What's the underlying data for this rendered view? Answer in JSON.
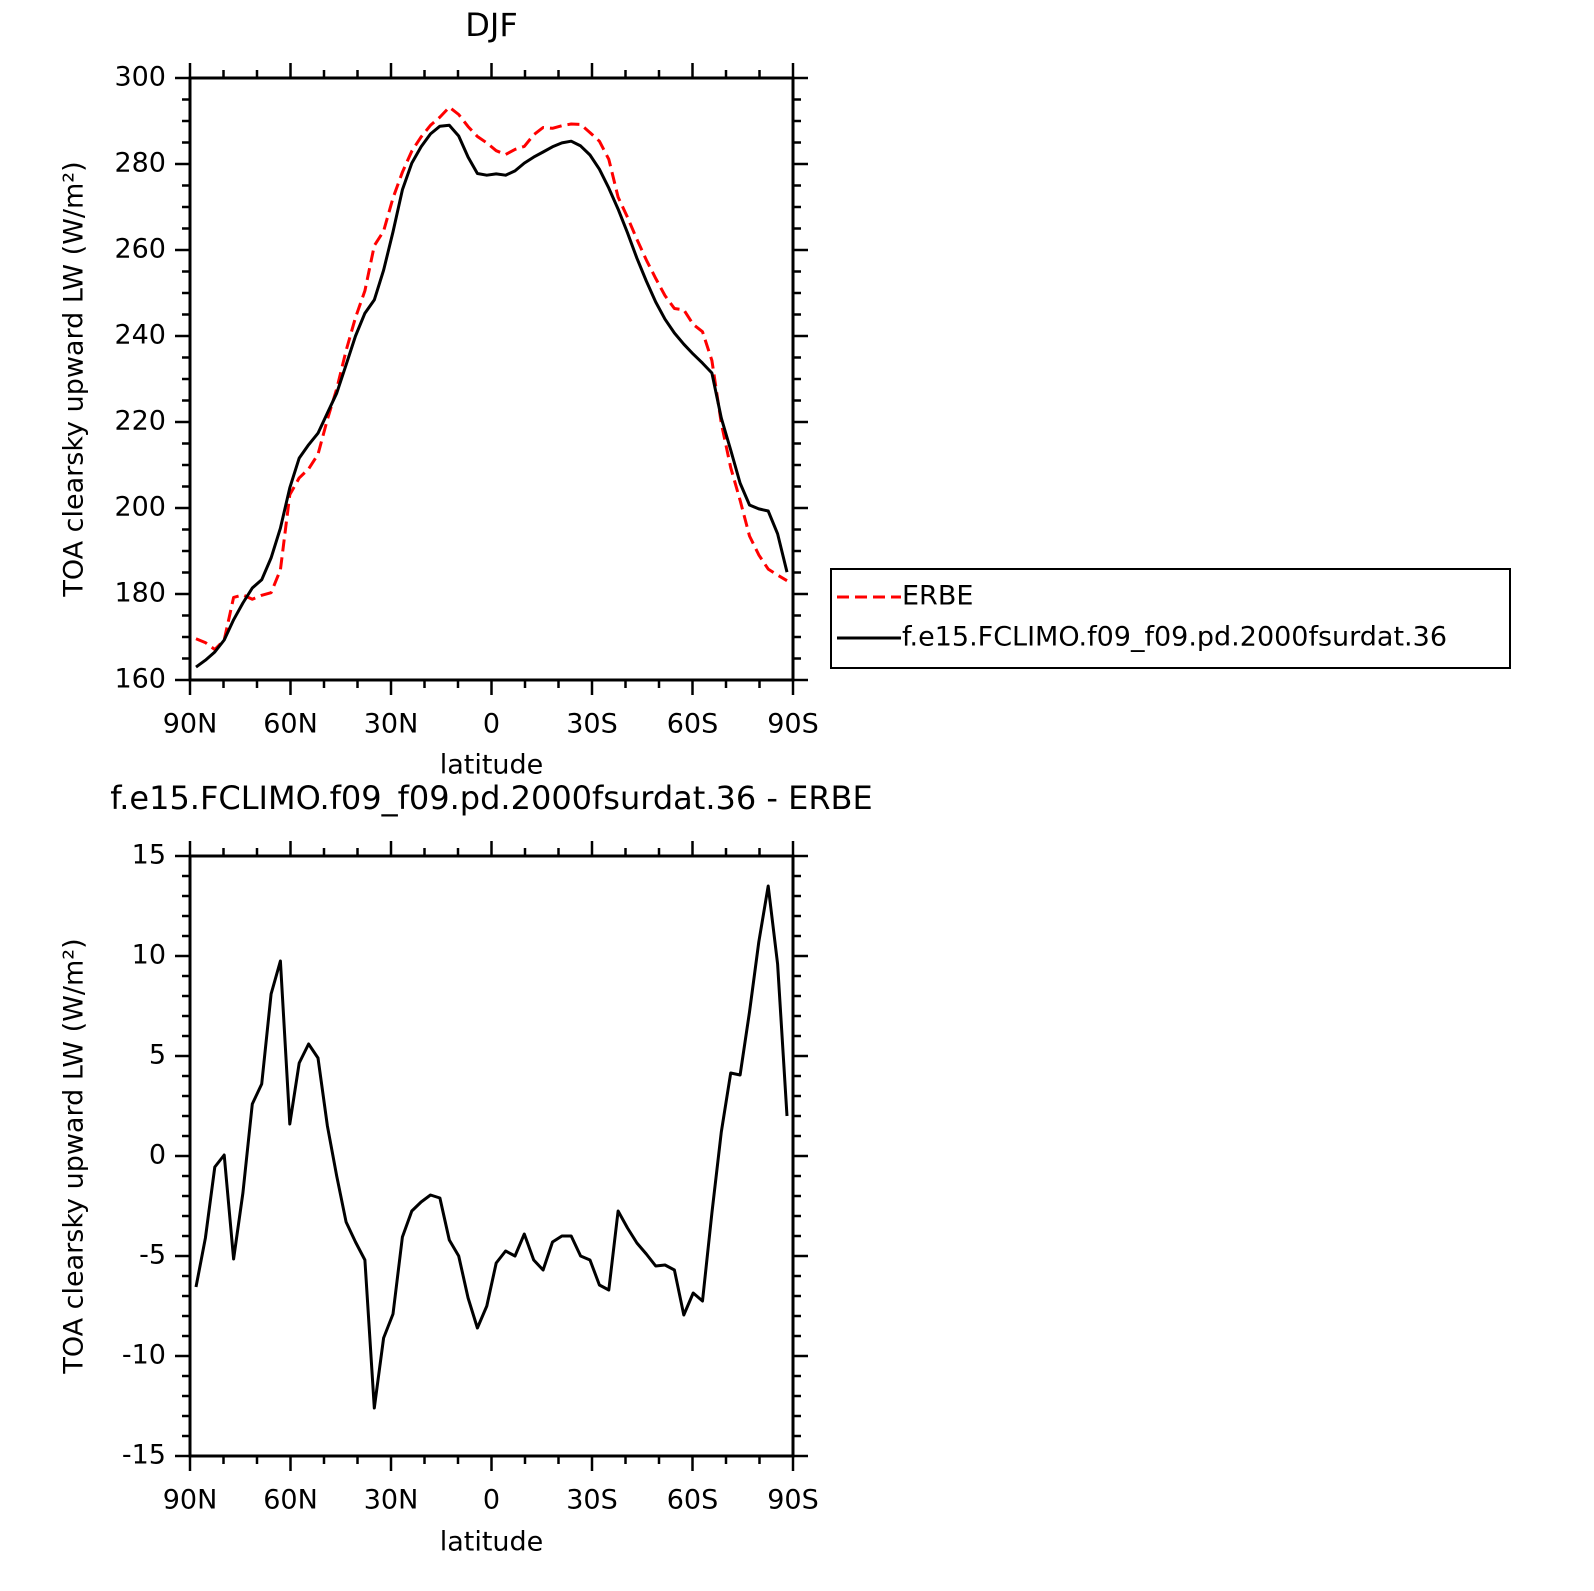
{
  "chart_data": [
    {
      "type": "line",
      "title": "DJF",
      "xlabel": "latitude",
      "ylabel": "TOA clearsky upward LW (W/m²)",
      "x": [
        88.2,
        85.4,
        82.6,
        79.8,
        77,
        74.2,
        71.4,
        68.6,
        65.8,
        63,
        60.2,
        57.4,
        54.6,
        51.8,
        49,
        46.2,
        43.4,
        40.6,
        37.8,
        35,
        32.2,
        29.4,
        26.6,
        23.8,
        21,
        18.2,
        15.4,
        12.6,
        9.8,
        7,
        4.2,
        1.4,
        -1.4,
        -4.2,
        -7,
        -9.8,
        -12.6,
        -15.4,
        -18.2,
        -21,
        -23.8,
        -26.6,
        -29.4,
        -32.2,
        -35,
        -37.8,
        -40.6,
        -43.4,
        -46.2,
        -49,
        -51.8,
        -54.6,
        -57.4,
        -60.2,
        -63,
        -65.8,
        -68.6,
        -71.4,
        -74.2,
        -77,
        -79.8,
        -82.6,
        -85.4,
        -88.2
      ],
      "series": [
        {
          "name": "ERBE",
          "color": "#ff0000",
          "dash": "dashed",
          "values": [
            169.6,
            168.7,
            167.1,
            169.3,
            179.2,
            179.8,
            178.8,
            179.7,
            180.3,
            185.6,
            203.1,
            207.0,
            209.1,
            212.5,
            220.6,
            227.7,
            236.6,
            244.3,
            250.5,
            261,
            264.4,
            272.1,
            278.1,
            283.0,
            286.3,
            289.0,
            290.9,
            293.2,
            291.5,
            288.7,
            286.4,
            284.9,
            283.1,
            282.2,
            283.4,
            284.1,
            286.8,
            288.5,
            288.3,
            288.9,
            289.3,
            289.2,
            287.3,
            285.3,
            281.1,
            272.3,
            267.6,
            262.5,
            257.7,
            253.4,
            249.4,
            246.4,
            246.1,
            242.7,
            241.0,
            234.3,
            219.7,
            209.4,
            201.8,
            193.5,
            189.1,
            185.8,
            184.4,
            183.1
          ]
        },
        {
          "name": "f.e15.FCLIMO.f09_f09.pd.2000fsurdat.36",
          "color": "#000000",
          "dash": "solid",
          "values": [
            163.0,
            164.6,
            166.5,
            169.3,
            174,
            177.9,
            181.4,
            183.3,
            188.4,
            195.3,
            204.7,
            211.6,
            214.7,
            217.4,
            222.1,
            226.7,
            233.3,
            240,
            245.3,
            248.4,
            255.3,
            264.2,
            274,
            280.2,
            284,
            287,
            288.8,
            289,
            286.5,
            281.6,
            277.8,
            277.4,
            277.7,
            277.4,
            278.4,
            280.2,
            281.6,
            282.8,
            284,
            284.9,
            285.3,
            284.2,
            282.1,
            278.8,
            274.4,
            269.5,
            264,
            258.1,
            252.8,
            247.9,
            243.9,
            240.7,
            238.1,
            235.8,
            233.7,
            231.4,
            220.9,
            213.5,
            205.8,
            200.7,
            199.8,
            199.3,
            194,
            185.1
          ]
        }
      ],
      "xlim": [
        90,
        -90
      ],
      "xticks": [
        {
          "value": 90,
          "label": "90N"
        },
        {
          "value": 60,
          "label": "60N"
        },
        {
          "value": 30,
          "label": "30N"
        },
        0,
        {
          "value": -30,
          "label": "30S"
        },
        {
          "value": -60,
          "label": "60S"
        },
        {
          "value": -90,
          "label": "90S"
        }
      ],
      "xminorticks": [
        80,
        70,
        50,
        40,
        20,
        10,
        -10,
        -20,
        -40,
        -50,
        -70,
        -80
      ],
      "ylim": [
        160,
        300
      ],
      "yticks": [
        160,
        180,
        200,
        220,
        240,
        260,
        280,
        300
      ],
      "yminorticks": [
        165,
        170,
        175,
        185,
        190,
        195,
        205,
        210,
        215,
        225,
        230,
        235,
        245,
        250,
        255,
        265,
        270,
        275,
        285,
        290,
        295
      ],
      "legend": "right"
    },
    {
      "type": "line",
      "title": "f.e15.FCLIMO.f09_f09.pd.2000fsurdat.36 - ERBE",
      "xlabel": "latitude",
      "ylabel": "TOA clearsky upward LW (W/m²)",
      "x": [
        88.2,
        85.4,
        82.6,
        79.8,
        77,
        74.2,
        71.4,
        68.6,
        65.8,
        63,
        60.2,
        57.4,
        54.6,
        51.8,
        49,
        46.2,
        43.4,
        40.6,
        37.8,
        35,
        32.2,
        29.4,
        26.6,
        23.8,
        21,
        18.2,
        15.4,
        12.6,
        9.8,
        7,
        4.2,
        1.4,
        -1.4,
        -4.2,
        -7,
        -9.8,
        -12.6,
        -15.4,
        -18.2,
        -21,
        -23.8,
        -26.6,
        -29.4,
        -32.2,
        -35,
        -37.8,
        -40.6,
        -43.4,
        -46.2,
        -49,
        -51.8,
        -54.6,
        -57.4,
        -60.2,
        -63,
        -65.8,
        -68.6,
        -71.4,
        -74.2,
        -77,
        -79.8,
        -82.6,
        -85.4,
        -88.2
      ],
      "series": [
        {
          "color": "#000000",
          "dash": "solid",
          "values": [
            -6.55,
            -4.1,
            -0.55,
            0.05,
            -5.15,
            -1.85,
            2.6,
            3.6,
            8.1,
            9.75,
            1.6,
            4.65,
            5.6,
            4.9,
            1.5,
            -1.0,
            -3.3,
            -4.3,
            -5.2,
            -12.6,
            -9.1,
            -7.9,
            -4.05,
            -2.75,
            -2.3,
            -1.95,
            -2.1,
            -4.2,
            -5.0,
            -7.1,
            -8.6,
            -7.5,
            -5.35,
            -4.75,
            -5.0,
            -3.9,
            -5.2,
            -5.7,
            -4.3,
            -4.0,
            -4.0,
            -5.0,
            -5.2,
            -6.45,
            -6.7,
            -2.75,
            -3.6,
            -4.35,
            -4.9,
            -5.5,
            -5.45,
            -5.7,
            -7.95,
            -6.85,
            -7.25,
            -2.85,
            1.2,
            4.15,
            4.05,
            7.2,
            10.7,
            13.5,
            9.6,
            2.0
          ]
        }
      ],
      "xlim": [
        90,
        -90
      ],
      "xticks": [
        {
          "value": 90,
          "label": "90N"
        },
        {
          "value": 60,
          "label": "60N"
        },
        {
          "value": 30,
          "label": "30N"
        },
        0,
        {
          "value": -30,
          "label": "30S"
        },
        {
          "value": -60,
          "label": "60S"
        },
        {
          "value": -90,
          "label": "90S"
        }
      ],
      "xminorticks": [
        80,
        70,
        50,
        40,
        20,
        10,
        -10,
        -20,
        -40,
        -50,
        -70,
        -80
      ],
      "ylim": [
        -15,
        15
      ],
      "yticks": [
        -15,
        -10,
        -5,
        0,
        5,
        10,
        15
      ],
      "yminorticks": [
        -14,
        -13,
        -12,
        -11,
        -9,
        -8,
        -7,
        -6,
        -4,
        -3,
        -2,
        -1,
        1,
        2,
        3,
        4,
        6,
        7,
        8,
        9,
        11,
        12,
        13,
        14
      ]
    }
  ]
}
